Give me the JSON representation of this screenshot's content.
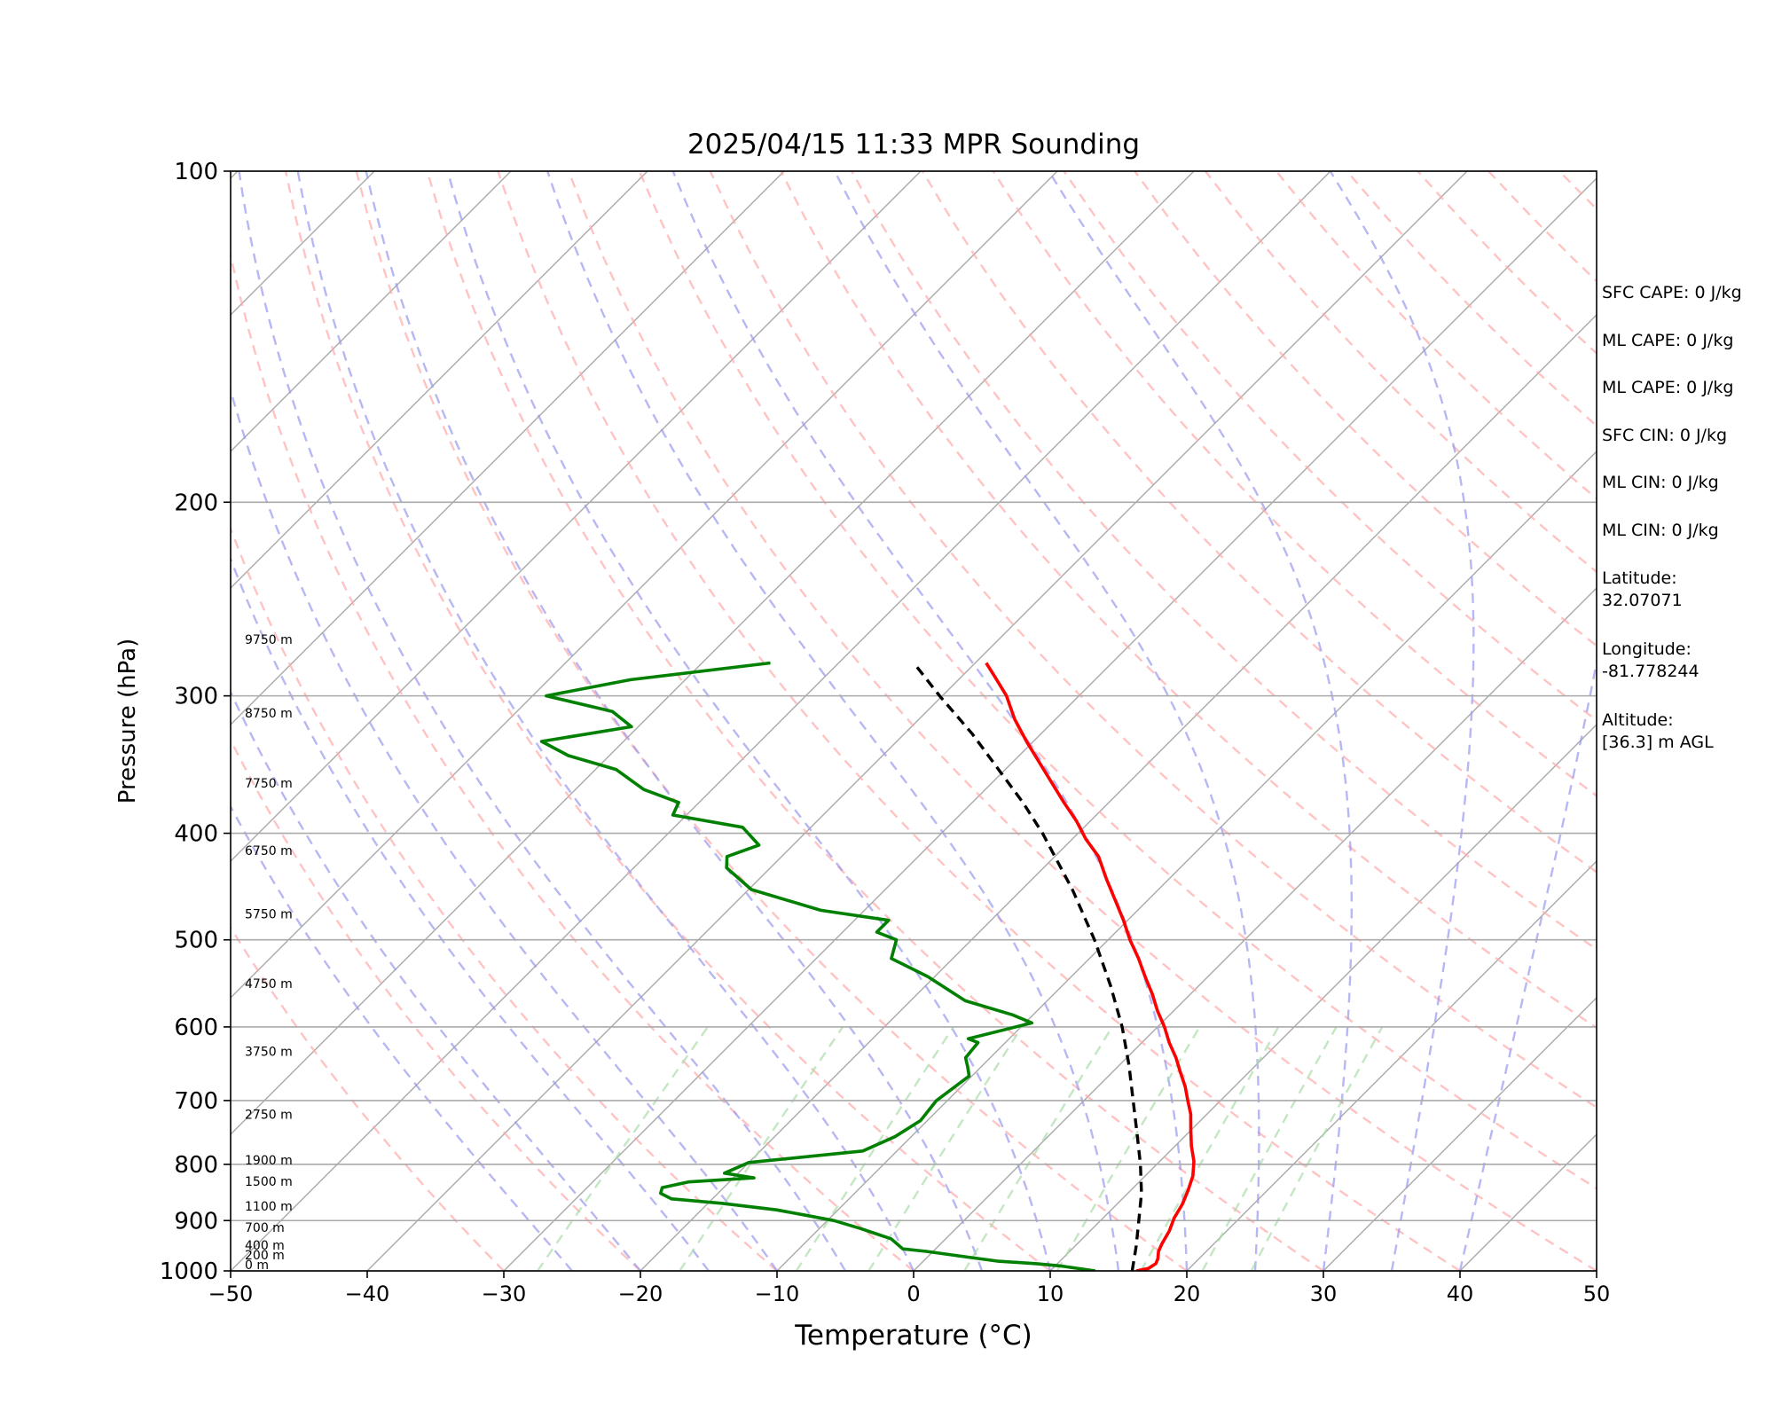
{
  "chart_data": {
    "type": "line",
    "title": "2025/04/15 11:33 MPR Sounding",
    "xlabel": "Temperature (°C)",
    "ylabel": "Pressure (hPa)",
    "xlim": [
      -50,
      50
    ],
    "ylim": [
      1000,
      100
    ],
    "y_scale": "log",
    "x_ticks": [
      "−50",
      "−40",
      "−30",
      "−20",
      "−10",
      "0",
      "10",
      "20",
      "30",
      "40",
      "50"
    ],
    "x_tick_values": [
      -50,
      -40,
      -30,
      -20,
      -10,
      0,
      10,
      20,
      30,
      40,
      50
    ],
    "y_ticks": [
      "100",
      "200",
      "300",
      "400",
      "500",
      "600",
      "700",
      "800",
      "900",
      "1000"
    ],
    "y_tick_values": [
      100,
      200,
      300,
      400,
      500,
      600,
      700,
      800,
      900,
      1000
    ],
    "grid": true,
    "skew": true,
    "background_lines": [
      "isotherms",
      "dry adiabats",
      "moist adiabats",
      "mixing ratio lines"
    ],
    "colors": {
      "temperature": "#ff0000",
      "dewpoint": "#008000",
      "parcel": "#000000",
      "isotherm": "#aaaaaa",
      "dry_adiabat": "#ffaaaa",
      "moist_adiabat": "#9999ee",
      "mixing_ratio": "#aaddaa"
    },
    "series": [
      {
        "key": "temperature",
        "points": [
          [
            16.3,
            1000
          ],
          [
            17.0,
            995
          ],
          [
            17.2,
            985
          ],
          [
            17.0,
            975
          ],
          [
            16.5,
            960
          ],
          [
            16.2,
            945
          ],
          [
            15.8,
            920
          ],
          [
            15.2,
            895
          ],
          [
            14.8,
            870
          ],
          [
            14.2,
            845
          ],
          [
            13.5,
            820
          ],
          [
            12.5,
            795
          ],
          [
            11.2,
            770
          ],
          [
            10.0,
            745
          ],
          [
            8.8,
            720
          ],
          [
            7.6,
            700
          ],
          [
            6.4,
            680
          ],
          [
            5.0,
            660
          ],
          [
            3.6,
            640
          ],
          [
            2.0,
            620
          ],
          [
            0.5,
            600
          ],
          [
            -1.2,
            580
          ],
          [
            -2.8,
            560
          ],
          [
            -4.6,
            540
          ],
          [
            -6.4,
            520
          ],
          [
            -8.4,
            500
          ],
          [
            -10.3,
            480
          ],
          [
            -12.4,
            460
          ],
          [
            -14.6,
            440
          ],
          [
            -16.8,
            420
          ],
          [
            -19.0,
            405
          ],
          [
            -21.0,
            390
          ],
          [
            -23.3,
            375
          ],
          [
            -25.6,
            360
          ],
          [
            -28.0,
            345
          ],
          [
            -30.5,
            330
          ],
          [
            -33.0,
            315
          ],
          [
            -35.3,
            300
          ],
          [
            -37.6,
            288
          ],
          [
            -39.2,
            280
          ]
        ]
      },
      {
        "key": "dewpoint",
        "points": [
          [
            13.3,
            1000
          ],
          [
            10.5,
            990
          ],
          [
            8.5,
            985
          ],
          [
            5.5,
            980
          ],
          [
            2.5,
            970
          ],
          [
            -0.5,
            960
          ],
          [
            -2.4,
            955
          ],
          [
            -4.0,
            935
          ],
          [
            -5.5,
            925
          ],
          [
            -7.0,
            915
          ],
          [
            -9.5,
            900
          ],
          [
            -12.0,
            890
          ],
          [
            -14.5,
            880
          ],
          [
            -19.0,
            868
          ],
          [
            -23.0,
            860
          ],
          [
            -24.2,
            850
          ],
          [
            -24.5,
            840
          ],
          [
            -23.0,
            830
          ],
          [
            -18.5,
            823
          ],
          [
            -21.0,
            815
          ],
          [
            -20.0,
            797
          ],
          [
            -12.5,
            778
          ],
          [
            -11.2,
            755
          ],
          [
            -10.5,
            730
          ],
          [
            -10.8,
            700
          ],
          [
            -10.2,
            665
          ],
          [
            -11.0,
            652
          ],
          [
            -11.8,
            640
          ],
          [
            -12.0,
            620
          ],
          [
            -13.0,
            615
          ],
          [
            -9.5,
            595
          ],
          [
            -11.5,
            585
          ],
          [
            -16.0,
            568
          ],
          [
            -20.5,
            540
          ],
          [
            -24.5,
            520
          ],
          [
            -25.5,
            500
          ],
          [
            -27.5,
            492
          ],
          [
            -27.5,
            480
          ],
          [
            -33.2,
            470
          ],
          [
            -39.8,
            450
          ],
          [
            -43.2,
            430
          ],
          [
            -44.0,
            420
          ],
          [
            -42.5,
            410
          ],
          [
            -45.0,
            395
          ],
          [
            -51.0,
            385
          ],
          [
            -51.5,
            375
          ],
          [
            -55.0,
            365
          ],
          [
            -58.5,
            350
          ],
          [
            -63.0,
            340
          ],
          [
            -66.0,
            330
          ],
          [
            -60.5,
            320
          ],
          [
            -63.0,
            310
          ],
          [
            -69.0,
            300
          ],
          [
            -64.0,
            290
          ],
          [
            -55.0,
            280
          ]
        ]
      },
      {
        "key": "parcel",
        "points": [
          [
            16.0,
            1000
          ],
          [
            14.5,
            950
          ],
          [
            12.8,
            900
          ],
          [
            11.0,
            850
          ],
          [
            8.8,
            800
          ],
          [
            6.3,
            750
          ],
          [
            3.6,
            700
          ],
          [
            0.7,
            650
          ],
          [
            -2.6,
            600
          ],
          [
            -6.5,
            550
          ],
          [
            -11.0,
            500
          ],
          [
            -16.3,
            450
          ],
          [
            -22.6,
            400
          ],
          [
            -26.3,
            375
          ],
          [
            -30.5,
            350
          ],
          [
            -35.0,
            325
          ],
          [
            -40.2,
            300
          ],
          [
            -44.5,
            280
          ]
        ]
      }
    ],
    "height_labels": [
      {
        "text": "0 m",
        "p": 1000
      },
      {
        "text": "200 m",
        "p": 980
      },
      {
        "text": "400 m",
        "p": 960
      },
      {
        "text": "700 m",
        "p": 925
      },
      {
        "text": "1100 m",
        "p": 885
      },
      {
        "text": "1500 m",
        "p": 840
      },
      {
        "text": "1900 m",
        "p": 803
      },
      {
        "text": "2750 m",
        "p": 730
      },
      {
        "text": "3750 m",
        "p": 640
      },
      {
        "text": "4750 m",
        "p": 555
      },
      {
        "text": "5750 m",
        "p": 480
      },
      {
        "text": "6750 m",
        "p": 420
      },
      {
        "text": "7750 m",
        "p": 365
      },
      {
        "text": "8750 m",
        "p": 315
      },
      {
        "text": "9750 m",
        "p": 270
      }
    ],
    "annotations": [
      {
        "key": "sfc_cape",
        "text": "SFC CAPE: 0 J/kg"
      },
      {
        "key": "ml_cape_1",
        "text": "ML CAPE: 0 J/kg"
      },
      {
        "key": "ml_cape_2",
        "text": "ML CAPE: 0 J/kg"
      },
      {
        "key": "sfc_cin",
        "text": "SFC CIN: 0 J/kg"
      },
      {
        "key": "ml_cin_1",
        "text": "ML CIN: 0 J/kg"
      },
      {
        "key": "ml_cin_2",
        "text": "ML CIN: 0 J/kg"
      },
      {
        "key": "latitude",
        "text": "Latitude:\n32.07071"
      },
      {
        "key": "longitude",
        "text": "Longitude:\n-81.778244"
      },
      {
        "key": "altitude",
        "text": "Altitude:\n[36.3] m AGL"
      }
    ]
  }
}
